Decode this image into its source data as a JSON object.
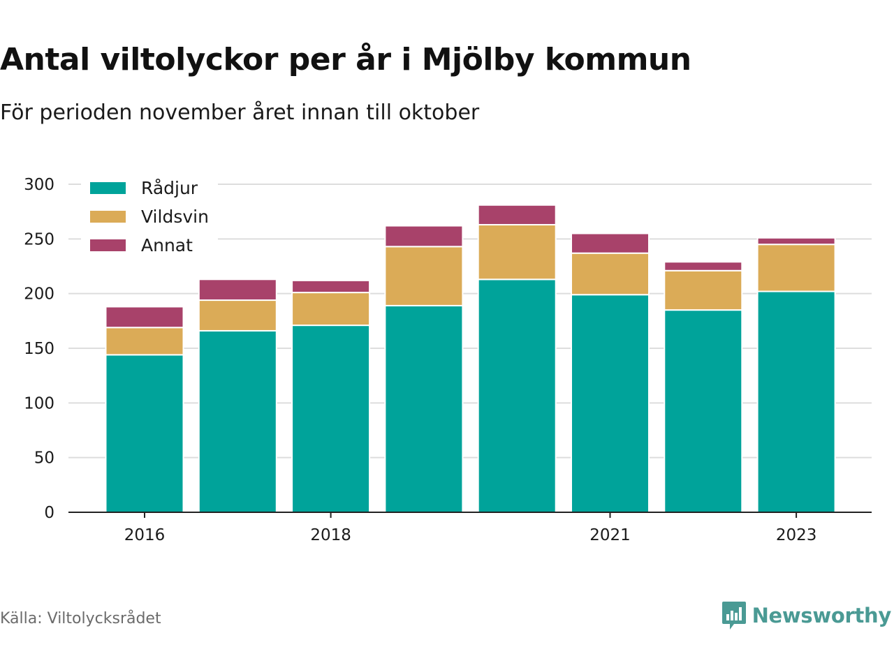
{
  "header": {
    "title": "Antal viltolyckor per år i Mjölby kommun",
    "subtitle": "För perioden november året innan till oktober"
  },
  "footer": {
    "source": "Källa: Viltolycksrådet",
    "brand": "Newsworthy"
  },
  "colors": {
    "radjur": "#00a39a",
    "vildsvin": "#dbab57",
    "annat": "#a8426a",
    "grid": "#dddddd",
    "axis": "#222222",
    "brand": "#4a9a94"
  },
  "chart_data": {
    "type": "bar",
    "stacked": true,
    "categories": [
      "2016",
      "2017",
      "2018",
      "2019",
      "2020",
      "2021",
      "2022",
      "2023"
    ],
    "x_tick_labels": [
      "2016",
      "",
      "2018",
      "",
      "",
      "2021",
      "",
      "2023"
    ],
    "series": [
      {
        "name": "Rådjur",
        "values": [
          144,
          166,
          171,
          189,
          213,
          199,
          185,
          202
        ]
      },
      {
        "name": "Vildsvin",
        "values": [
          25,
          28,
          30,
          54,
          50,
          38,
          36,
          43
        ]
      },
      {
        "name": "Annat",
        "values": [
          19,
          19,
          11,
          19,
          18,
          18,
          8,
          6
        ]
      }
    ],
    "y_ticks": [
      0,
      50,
      100,
      150,
      200,
      250,
      300
    ],
    "ylim": [
      0,
      300
    ],
    "grid": true,
    "legend": "top-left"
  }
}
